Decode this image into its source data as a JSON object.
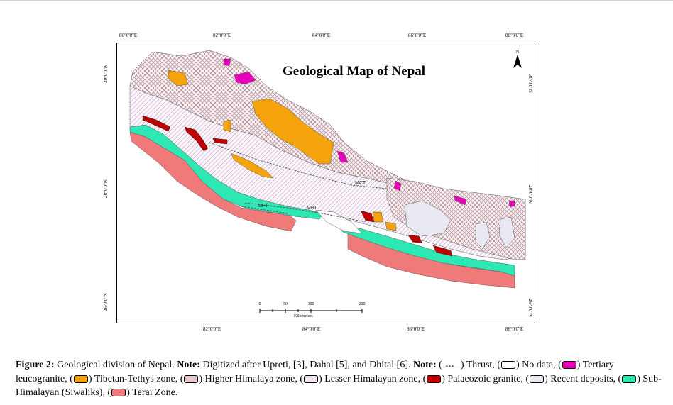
{
  "map": {
    "title": "Geological Map of Nepal",
    "north_label": "N",
    "lon_ticks_top": [
      "80°0'0\"E",
      "82°0'0\"E",
      "84°0'0\"E",
      "86°0'0\"E",
      "88°0'0\"E"
    ],
    "lon_ticks_bottom": [
      "82°0'0\"E",
      "84°0'0\"E",
      "86°0'0\"E",
      "88°0'0\"E"
    ],
    "lat_ticks_left": [
      "30°0'0\"N",
      "28°0'0\"N",
      "26°0'0\"N"
    ],
    "lat_ticks_right": [
      "30°0'0\"N",
      "28°0'0\"N",
      "26°0'0\"N"
    ],
    "scale": {
      "ticks": [
        "0",
        "50",
        "100",
        "200"
      ],
      "unit": "Kilometers"
    },
    "zone_labels": {
      "mct": "MCT",
      "mft": "MFT",
      "mbt": "MBT"
    },
    "colors": {
      "no_data": "#ffffff",
      "tertiary_leucogranite": "#e600b8",
      "tibetan_tethys": "#f5a30c",
      "higher_himalaya": "#b9838b",
      "lesser_himalayan": "#c5a3c8",
      "palaeozoic_granite": "#c00000",
      "recent_deposits": "#e9e9f3",
      "sub_himalayan": "#2ee8b4",
      "terai": "#f07a7a"
    }
  },
  "caption": {
    "label": "Figure 2:",
    "text": "Geological division of Nepal.",
    "note1_label": "Note:",
    "note1_text": "Digitized after Upreti, [3], Dahal [5], and Dhital [6].",
    "note2_label": "Note:",
    "legend": [
      {
        "key": "thrust",
        "text": "Thrust,"
      },
      {
        "key": "no_data",
        "text": "No data,"
      },
      {
        "key": "tertiary_leucogranite",
        "text": "Tertiary leucogranite,"
      },
      {
        "key": "tibetan_tethys",
        "text": "Tibetan-Tethys zone,"
      },
      {
        "key": "higher_himalaya",
        "text": "Higher Himalaya zone,"
      },
      {
        "key": "lesser_himalayan",
        "text": "Lesser Himalayan zone,"
      },
      {
        "key": "palaeozoic_granite",
        "text": "Palaeozoic granite,"
      },
      {
        "key": "recent_deposits",
        "text": "Recent deposits,"
      },
      {
        "key": "sub_himalayan",
        "text": "Sub-Himalayan (Siwaliks),"
      },
      {
        "key": "terai",
        "text": "Terai Zone."
      }
    ]
  }
}
